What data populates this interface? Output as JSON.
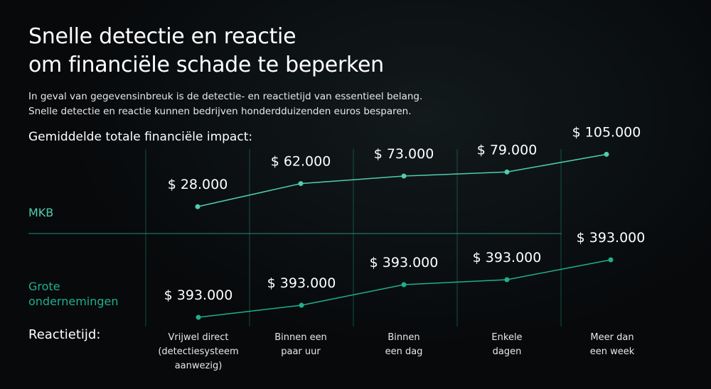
{
  "title_line1": "Snelle detectie en reactie",
  "title_line2": "om financiële schade te beperken",
  "subtitle_line1": "In geval van gegevensinbreuk is de detectie- en reactietijd van essentieel belang.",
  "subtitle_line2": "Snelle detectie en reactie kunnen bedrijven honderdduizenden euros besparen.",
  "impact_label": "Gemiddelde totale financiële impact:",
  "xaxis_label": "Reactietijd:",
  "chart_data": {
    "type": "line",
    "title": "Gemiddelde totale financiële impact:",
    "xlabel": "Reactietijd:",
    "categories": [
      "Vrijwel direct\n(detectiesysteem\naanwezig)",
      "Binnen een\npaar uur",
      "Binnen\neen dag",
      "Enkele\ndagen",
      "Meer dan\neen week"
    ],
    "grid": true,
    "series": [
      {
        "name": "MKB",
        "color": "#4fcdb0",
        "values": [
          28000,
          62000,
          73000,
          79000,
          105000
        ],
        "labels": [
          "$ 28.000",
          "$ 62.000",
          "$ 73.000",
          "$ 79.000",
          "$ 105.000"
        ]
      },
      {
        "name": "Grote ondernemingen",
        "color": "#1faf8f",
        "values": [
          393000,
          393000,
          393000,
          393000,
          393000
        ],
        "labels": [
          "$ 393.000",
          "$ 393.000",
          "$ 393.000",
          "$ 393.000",
          "$ 393.000"
        ]
      }
    ]
  }
}
